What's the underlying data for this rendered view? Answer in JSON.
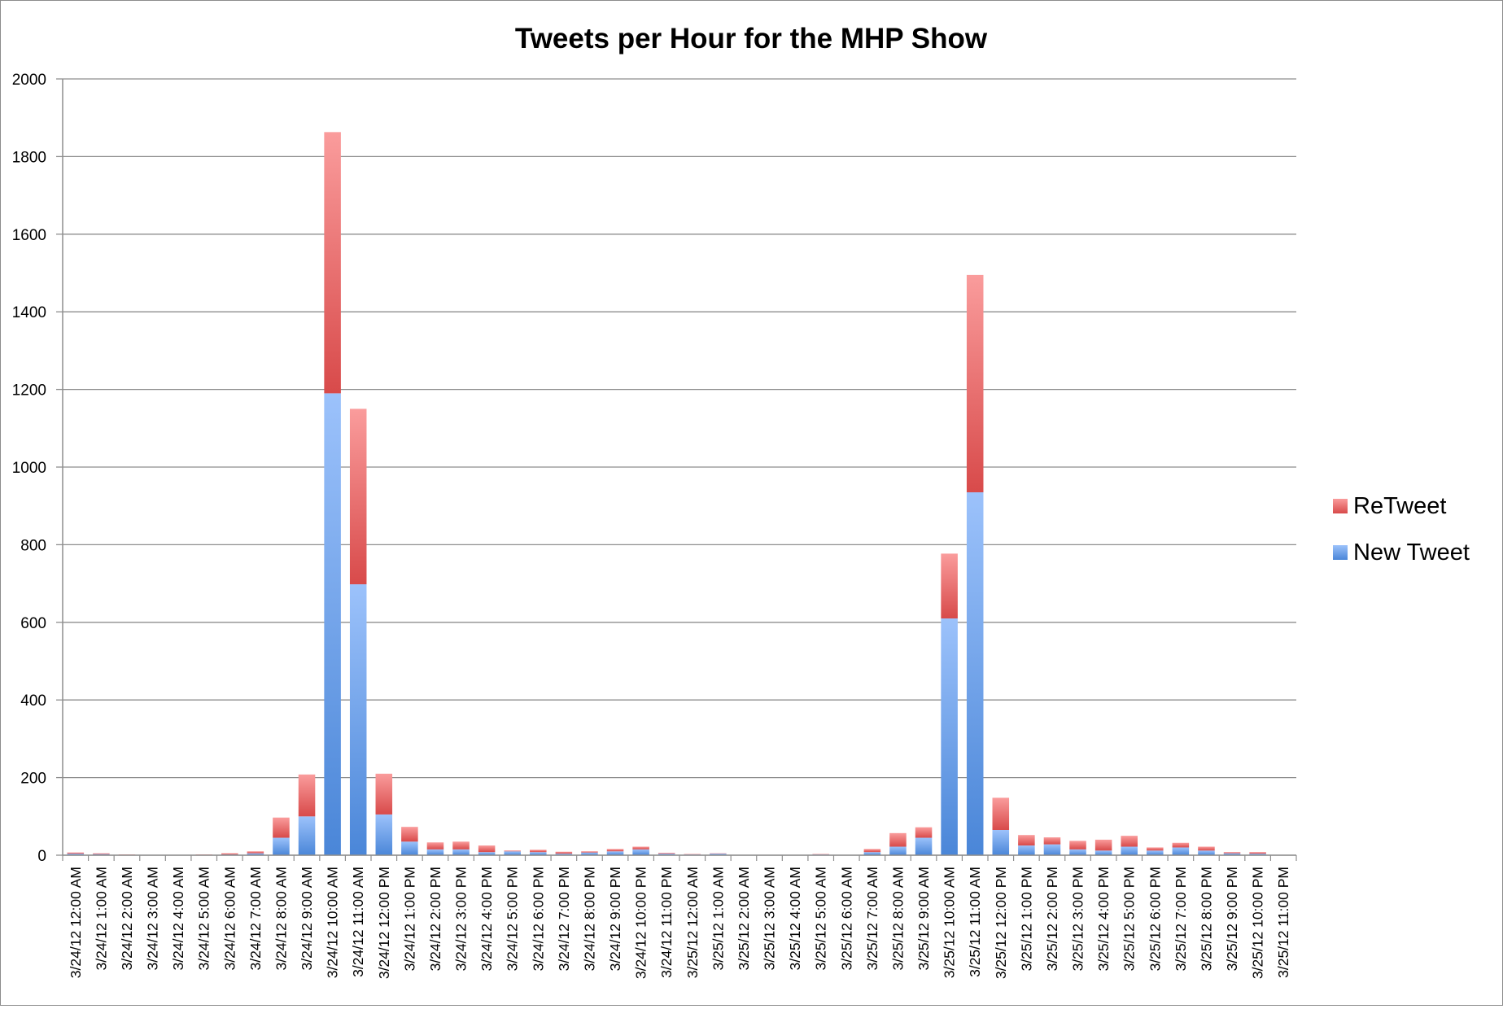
{
  "chart_data": {
    "type": "bar",
    "stacked": true,
    "title": "Tweets per Hour for the MHP Show",
    "xlabel": "",
    "ylabel": "",
    "ylim": [
      0,
      2000
    ],
    "yticks": [
      0,
      200,
      400,
      600,
      800,
      1000,
      1200,
      1400,
      1600,
      1800,
      2000
    ],
    "grid": true,
    "legend_position": "right",
    "categories": [
      "3/24/12 12:00 AM",
      "3/24/12 1:00 AM",
      "3/24/12 2:00 AM",
      "3/24/12 3:00 AM",
      "3/24/12 4:00 AM",
      "3/24/12 5:00 AM",
      "3/24/12 6:00 AM",
      "3/24/12 7:00 AM",
      "3/24/12 8:00 AM",
      "3/24/12 9:00 AM",
      "3/24/12 10:00 AM",
      "3/24/12 11:00 AM",
      "3/24/12 12:00 PM",
      "3/24/12 1:00 PM",
      "3/24/12 2:00 PM",
      "3/24/12 3:00 PM",
      "3/24/12 4:00 PM",
      "3/24/12 5:00 PM",
      "3/24/12 6:00 PM",
      "3/24/12 7:00 PM",
      "3/24/12 8:00 PM",
      "3/24/12 9:00 PM",
      "3/24/12 10:00 PM",
      "3/24/12 11:00 PM",
      "3/25/12 12:00 AM",
      "3/25/12 1:00 AM",
      "3/25/12 2:00 AM",
      "3/25/12 3:00 AM",
      "3/25/12 4:00 AM",
      "3/25/12 5:00 AM",
      "3/25/12 6:00 AM",
      "3/25/12 7:00 AM",
      "3/25/12 8:00 AM",
      "3/25/12 9:00 AM",
      "3/25/12 10:00 AM",
      "3/25/12 11:00 AM",
      "3/25/12 12:00 PM",
      "3/25/12 1:00 PM",
      "3/25/12 2:00 PM",
      "3/25/12 3:00 PM",
      "3/25/12 4:00 PM",
      "3/25/12 5:00 PM",
      "3/25/12 6:00 PM",
      "3/25/12 7:00 PM",
      "3/25/12 8:00 PM",
      "3/25/12 9:00 PM",
      "3/25/12 10:00 PM",
      "3/25/12 11:00 PM"
    ],
    "series": [
      {
        "name": "New Tweet",
        "color": "#4a86d8",
        "color_light": "#9cc2fb",
        "values": [
          4,
          3,
          1,
          0,
          0,
          1,
          2,
          5,
          45,
          100,
          1190,
          698,
          105,
          35,
          15,
          15,
          8,
          10,
          8,
          4,
          7,
          10,
          15,
          4,
          2,
          4,
          1,
          0,
          1,
          2,
          0,
          8,
          22,
          45,
          610,
          935,
          65,
          25,
          28,
          15,
          12,
          22,
          12,
          20,
          12,
          5,
          4,
          0
        ]
      },
      {
        "name": "ReTweet",
        "color": "#d84a4a",
        "color_light": "#fa9c9c",
        "values": [
          3,
          2,
          1,
          0,
          0,
          1,
          3,
          5,
          52,
          108,
          673,
          452,
          105,
          38,
          18,
          20,
          17,
          2,
          6,
          5,
          3,
          6,
          7,
          2,
          1,
          1,
          0,
          0,
          0,
          1,
          0,
          8,
          35,
          27,
          167,
          560,
          83,
          27,
          18,
          22,
          28,
          28,
          8,
          12,
          10,
          3,
          4,
          0
        ]
      }
    ]
  }
}
